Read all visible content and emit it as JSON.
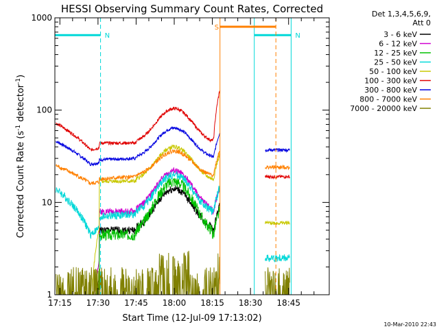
{
  "chart_data": {
    "type": "line",
    "title": "HESSI Observing Summary Count Rates, Corrected",
    "xlabel": "Start Time (12-Jul-09 17:13:02)",
    "ylabel_main": "Corrected Count Rate (s",
    "ylabel_sup1": "-1",
    "ylabel_mid": " detector",
    "ylabel_sup2": "-1",
    "ylabel_end": ")",
    "x_ticks": [
      "17:15",
      "17:30",
      "17:45",
      "18:00",
      "18:15",
      "18:30",
      "18:45"
    ],
    "x_tick_minutes": [
      15,
      30,
      45,
      60,
      75,
      90,
      105
    ],
    "xlim_minutes": [
      13.03,
      121.0
    ],
    "y_scale": "log",
    "ylim": [
      1,
      1000
    ],
    "y_ticks": [
      1,
      10,
      100,
      1000
    ],
    "y_tick_labels": [
      "1",
      "10",
      "100",
      "1000"
    ],
    "legend": {
      "title_line1": "Det 1,3,4,5,6,9,",
      "title_line2": "Att 0",
      "placement": "right"
    },
    "series": [
      {
        "name": "3 - 6 keV",
        "color": "#000000",
        "seed": 1,
        "levels": [
          0,
          0,
          5.0,
          5.0,
          14.0,
          5.0,
          0,
          0
        ],
        "noise": 0.1,
        "offset": 0.0
      },
      {
        "name": "6 - 12 keV",
        "color": "#d000d0",
        "seed": 2,
        "levels": [
          0,
          0,
          8.0,
          8.0,
          22.0,
          8.0,
          0,
          0
        ],
        "noise": 0.08,
        "offset": 0.0
      },
      {
        "name": "12 - 25 keV",
        "color": "#00c000",
        "seed": 3,
        "levels": [
          0,
          0,
          4.5,
          4.5,
          17.0,
          4.5,
          0,
          0
        ],
        "noise": 0.14,
        "offset": 0.0
      },
      {
        "name": "25 - 50 keV",
        "color": "#00d8d8",
        "seed": 4,
        "levels": [
          14.0,
          4.5,
          7.0,
          7.5,
          20.0,
          8.0,
          2.5,
          2.5
        ],
        "noise": 0.1,
        "offset": 0.0
      },
      {
        "name": "50 - 100 keV",
        "color": "#c8c800",
        "seed": 5,
        "levels": [
          0,
          0,
          17.0,
          17.0,
          40.0,
          18.0,
          6.0,
          6.0
        ],
        "noise": 0.05,
        "offset": 0.0
      },
      {
        "name": "100 - 300 keV",
        "color": "#e00000",
        "seed": 6,
        "levels": [
          72.0,
          37.0,
          44.0,
          44.0,
          104.0,
          48.0,
          19.0,
          19.0
        ],
        "noise": 0.04,
        "offset": 0.0
      },
      {
        "name": "300 - 800 keV",
        "color": "#0000e0",
        "seed": 7,
        "levels": [
          46.0,
          26.0,
          29.0,
          30.0,
          64.0,
          31.0,
          37.0,
          37.0
        ],
        "noise": 0.04,
        "offset": 0.0
      },
      {
        "name": "800 - 7000 keV",
        "color": "#ff8000",
        "seed": 8,
        "levels": [
          25.0,
          16.0,
          18.0,
          19.0,
          36.0,
          20.0,
          24.0,
          24.0
        ],
        "noise": 0.05,
        "offset": 0.0
      },
      {
        "name": "7000 - 20000 keV",
        "color": "#808000",
        "seed": 9,
        "levels": [
          1.5,
          1.0,
          1.0,
          1.0,
          2.0,
          1.0,
          1.5,
          1.5
        ],
        "noise": 0.35,
        "offset": 0.0
      }
    ],
    "flags": [
      {
        "label": "N",
        "color": "#00d8d8",
        "start_minute": 13.03,
        "end_minute": 31.0,
        "level": 650
      },
      {
        "label": "N",
        "color": "#00d8d8",
        "start_minute": 91.5,
        "end_minute": 106.0,
        "level": 650
      },
      {
        "label": "S",
        "color": "#ff8000",
        "start_minute": 78.0,
        "end_minute": 100.0,
        "level": 800
      }
    ],
    "footer_timestamp": "10-Mar-2010 22:43"
  }
}
